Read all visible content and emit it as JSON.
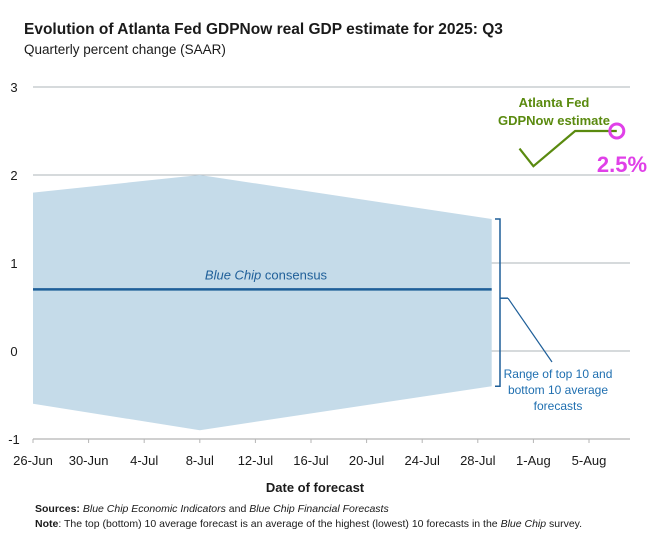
{
  "chart_data": {
    "type": "area",
    "title": "Evolution of Atlanta Fed GDPNow real GDP estimate for 2025: Q3",
    "subtitle": "Quarterly percent change (SAAR)",
    "xlabel": "Date of forecast",
    "ylabel": "",
    "ylim": [
      -1,
      3
    ],
    "yticks": [
      3,
      2,
      1,
      0,
      -1
    ],
    "x_start_day": 0,
    "x_end_day": 43,
    "x_origin_label": "26-Jun",
    "xticks": [
      {
        "label": "26-Jun",
        "day": 0
      },
      {
        "label": "30-Jun",
        "day": 4
      },
      {
        "label": "4-Jul",
        "day": 8
      },
      {
        "label": "8-Jul",
        "day": 12
      },
      {
        "label": "12-Jul",
        "day": 16
      },
      {
        "label": "16-Jul",
        "day": 20
      },
      {
        "label": "20-Jul",
        "day": 24
      },
      {
        "label": "24-Jul",
        "day": 28
      },
      {
        "label": "28-Jul",
        "day": 32
      },
      {
        "label": "1-Aug",
        "day": 36
      },
      {
        "label": "5-Aug",
        "day": 40
      }
    ],
    "grid": true,
    "series": [
      {
        "name": "Range of top 10 and bottom 10 average forecasts",
        "kind": "band",
        "color": "#c5dbe9",
        "points": [
          {
            "day": 0,
            "high": 1.8,
            "low": -0.6
          },
          {
            "day": 12,
            "high": 2.0,
            "low": -0.9
          },
          {
            "day": 33,
            "high": 1.5,
            "low": -0.4
          }
        ]
      },
      {
        "name": "Blue Chip consensus",
        "kind": "line",
        "color": "#1f5f99",
        "points": [
          {
            "day": 0,
            "value": 0.7
          },
          {
            "day": 33,
            "value": 0.7
          }
        ]
      },
      {
        "name": "Atlanta Fed GDPNow estimate",
        "kind": "line",
        "color": "#5a8a0f",
        "points": [
          {
            "day": 35,
            "value": 2.3
          },
          {
            "day": 36,
            "value": 2.1
          },
          {
            "day": 39,
            "value": 2.5
          },
          {
            "day": 42,
            "value": 2.5
          }
        ]
      }
    ],
    "annotations": {
      "consensus_label_italic": "Blue Chip",
      "consensus_label_rest": " consensus",
      "range_label_lines": [
        "Range of top 10 and",
        "bottom 10 average",
        "forecasts"
      ],
      "gdpnow_label_lines": [
        "Atlanta Fed",
        "GDPNow estimate"
      ],
      "latest_value_label": "2.5%",
      "latest_value": 2.5,
      "latest_day": 42,
      "highlight_color": "#e040e8"
    }
  },
  "footer": {
    "sources_label": "Sources:",
    "sources_italic_1": "Blue Chip Economic Indicators",
    "sources_and": " and ",
    "sources_italic_2": "Blue Chip Financial Forecasts",
    "note_label": "Note",
    "note_text_1": ": The top (bottom) 10 average forecast is an average of the highest (lowest) 10 forecasts in the ",
    "note_italic": "Blue Chip",
    "note_text_2": " survey."
  }
}
